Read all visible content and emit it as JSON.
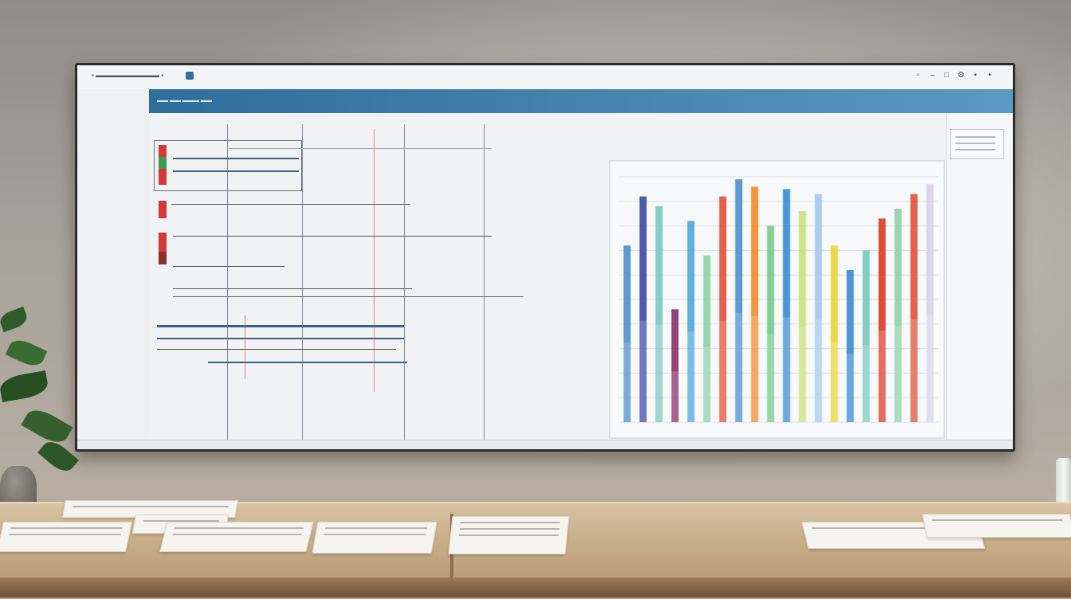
{
  "window": {
    "titlebar_left": "▪ ▬▬▬▬▬▬▬▬▬▬ ▪",
    "titlebar_icons": [
      "window-icon",
      "minimize-icon",
      "maximize-icon",
      "settings-icon",
      "close-icon"
    ]
  },
  "header": {
    "small_tabs": "▬▬ ▬▬ ▬▬▬ ▬▬",
    "left_title": "",
    "right_title": ""
  },
  "sidebar": {
    "items": [
      "",
      "",
      "",
      "",
      "",
      "",
      "",
      "",
      "",
      "",
      "",
      "",
      "",
      ""
    ]
  },
  "gantt": {
    "column_headers": [
      "",
      "",
      "",
      ""
    ],
    "labels": [
      "",
      "",
      "",
      "",
      "",
      "",
      "",
      ""
    ]
  },
  "chart_data": {
    "type": "bar",
    "title": "",
    "subtitle": "",
    "categories": [
      "",
      "",
      "",
      "",
      "",
      "",
      "",
      "",
      "",
      "",
      "",
      "",
      "",
      "",
      "",
      "",
      "",
      "",
      "",
      ""
    ],
    "values": [
      72,
      92,
      88,
      46,
      82,
      68,
      92,
      99,
      96,
      80,
      95,
      86,
      93,
      72,
      62,
      70,
      83,
      87,
      93,
      97
    ],
    "colors": [
      "#4f8fc9",
      "#3b4aa3",
      "#7bc7c0",
      "#8a2e6a",
      "#4fa6d8",
      "#8fd0a8",
      "#e2503a",
      "#4f8fc9",
      "#f08a2c",
      "#79c88d",
      "#3a8ad0",
      "#c8e07a",
      "#a7c6ea",
      "#e8d43a",
      "#3a8ad0",
      "#7bc7c0",
      "#d83a2a",
      "#8fd0a8",
      "#e2503a",
      "#d8d0ea"
    ],
    "ylim": [
      0,
      100
    ],
    "grid": true,
    "legend": "none"
  },
  "statusbar": {
    "text": ""
  }
}
